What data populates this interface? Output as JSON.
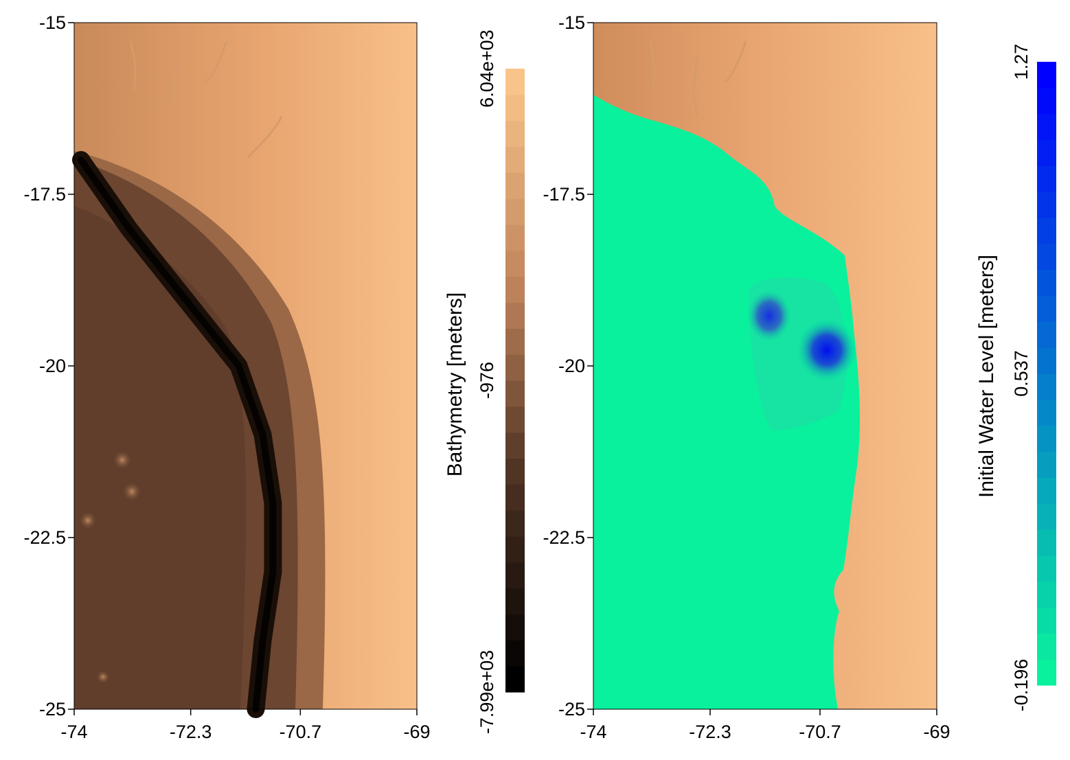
{
  "chart_data": [
    {
      "type": "heatmap",
      "title": "",
      "xlabel": "",
      "ylabel": "",
      "x_ticks": [
        "-74",
        "-72.3",
        "-70.7",
        "-69"
      ],
      "y_ticks": [
        "-15",
        "-17.5",
        "-20",
        "-22.5",
        "-25"
      ],
      "xlim": [
        -74,
        -69
      ],
      "ylim": [
        -25,
        -15
      ],
      "colorbar": {
        "label": "Bathymetry [meters]",
        "ticks": [
          "6.04e+03",
          "-976",
          "-7.99e+03"
        ],
        "range": [
          -7990,
          6040
        ],
        "colors": [
          "#000000",
          "#f9c48a"
        ]
      },
      "features": {
        "trench_x_at_y": [
          [
            -17.0,
            -73.9
          ],
          [
            -18.0,
            -73.2
          ],
          [
            -19.0,
            -72.4
          ],
          [
            -20.0,
            -71.6
          ],
          [
            -21.0,
            -71.25
          ],
          [
            -22.0,
            -71.1
          ],
          [
            -23.0,
            -71.1
          ],
          [
            -24.0,
            -71.25
          ],
          [
            -25.0,
            -71.35
          ]
        ]
      }
    },
    {
      "type": "heatmap",
      "title": "",
      "xlabel": "",
      "ylabel": "",
      "x_ticks": [
        "-74",
        "-72.3",
        "-70.7",
        "-69"
      ],
      "y_ticks": [
        "-15",
        "-17.5",
        "-20",
        "-22.5",
        "-25"
      ],
      "xlim": [
        -74,
        -69
      ],
      "ylim": [
        -25,
        -15
      ],
      "colorbar": {
        "label": "Initial Water Level [meters]",
        "ticks": [
          "1.27",
          "0.537",
          "-0.196"
        ],
        "range": [
          -0.196,
          1.27
        ],
        "colors": [
          "#09f19d",
          "#0000ff"
        ]
      },
      "features": {
        "peaks": [
          {
            "lon": -70.75,
            "lat": -19.75,
            "level": 1.27
          },
          {
            "lon": -71.4,
            "lat": -19.3,
            "level": 0.9
          }
        ]
      }
    }
  ]
}
